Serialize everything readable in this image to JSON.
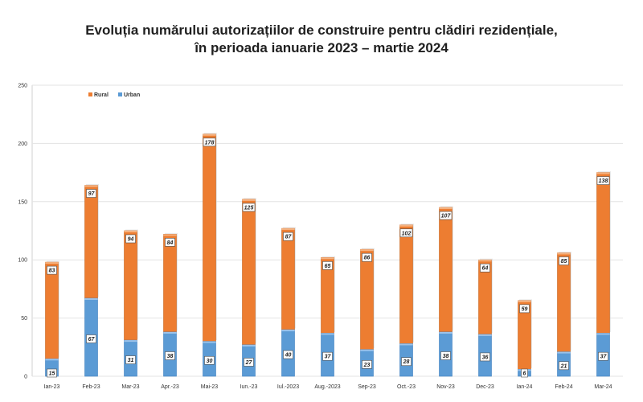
{
  "title_line1": "Evoluția numărului autorizațiilor de construire pentru clădiri rezidențiale,",
  "title_line2": "în perioada ianuarie 2023 – martie 2024",
  "colors": {
    "rural": "#ED7D31",
    "urban": "#5B9BD5"
  },
  "chart_data": {
    "type": "bar",
    "stacked": true,
    "categories": [
      "Ian-23",
      "Feb-23",
      "Mar-23",
      "Apr.-23",
      "Mai-23",
      "Iun.-23",
      "Iul.-2023",
      "Aug.-2023",
      "Sep-23",
      "Oct.-23",
      "Nov-23",
      "Dec-23",
      "Ian-24",
      "Feb-24",
      "Mar-24"
    ],
    "series": [
      {
        "name": "Urban",
        "values": [
          15,
          67,
          31,
          38,
          30,
          27,
          40,
          37,
          23,
          28,
          38,
          36,
          6,
          21,
          37
        ]
      },
      {
        "name": "Rural",
        "values": [
          83,
          97,
          94,
          84,
          178,
          125,
          87,
          65,
          86,
          102,
          107,
          64,
          59,
          85,
          138
        ]
      }
    ],
    "ylim": [
      0,
      250
    ],
    "yticks": [
      0,
      50,
      100,
      150,
      200,
      250
    ],
    "grid": true,
    "legend": "top-left",
    "legend_order": [
      "Rural",
      "Urban"
    ]
  }
}
